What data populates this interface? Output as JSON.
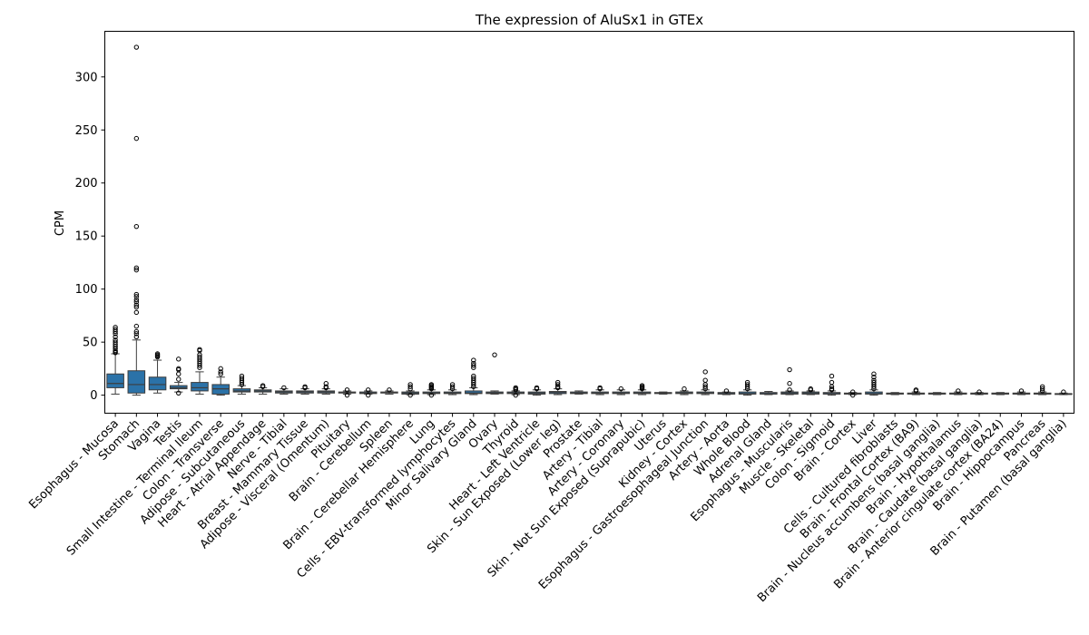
{
  "chart_data": {
    "type": "box",
    "title": "The expression of AluSx1 in GTEx",
    "xlabel": "",
    "ylabel": "CPM",
    "ylim": [
      -17,
      343
    ],
    "yticks": [
      0,
      50,
      100,
      150,
      200,
      250,
      300
    ],
    "grid": false,
    "legend": "none",
    "box_color": "#2b72a8",
    "categories": [
      "Esophagus - Mucosa",
      "Stomach",
      "Vagina",
      "Testis",
      "Small Intestine - Terminal Ileum",
      "Colon - Transverse",
      "Adipose - Subcutaneous",
      "Heart - Atrial Appendage",
      "Nerve - Tibial",
      "Breast - Mammary Tissue",
      "Adipose - Visceral (Omentum)",
      "Pituitary",
      "Brain - Cerebellum",
      "Spleen",
      "Brain - Cerebellar Hemisphere",
      "Lung",
      "Cells - EBV-transformed lymphocytes",
      "Minor Salivary Gland",
      "Ovary",
      "Thyroid",
      "Heart - Left Ventricle",
      "Skin - Sun Exposed (Lower leg)",
      "Prostate",
      "Artery - Tibial",
      "Artery - Coronary",
      "Skin - Not Sun Exposed (Suprapubic)",
      "Uterus",
      "Kidney - Cortex",
      "Esophagus - Gastroesophageal Junction",
      "Artery - Aorta",
      "Whole Blood",
      "Adrenal Gland",
      "Esophagus - Muscularis",
      "Muscle - Skeletal",
      "Colon - Sigmoid",
      "Brain - Cortex",
      "Liver",
      "Cells - Cultured fibroblasts",
      "Brain - Frontal Cortex (BA9)",
      "Brain - Nucleus accumbens (basal ganglia)",
      "Brain - Hypothalamus",
      "Brain - Caudate (basal ganglia)",
      "Brain - Anterior cingulate cortex (BA24)",
      "Brain - Hippocampus",
      "Pancreas",
      "Brain - Putamen (basal ganglia)"
    ],
    "boxes": [
      {
        "whislo": 1,
        "q1": 7,
        "med": 11,
        "q3": 20,
        "whishi": 39,
        "fliers": [
          40,
          41,
          42,
          44,
          46,
          48,
          50,
          52,
          55,
          58,
          60,
          62,
          64
        ]
      },
      {
        "whislo": 0,
        "q1": 2,
        "med": 10,
        "q3": 23,
        "whishi": 52,
        "fliers": [
          55,
          58,
          60,
          65,
          78,
          83,
          85,
          88,
          90,
          93,
          95,
          118,
          120,
          159,
          242,
          328
        ]
      },
      {
        "whislo": 2,
        "q1": 5,
        "med": 10,
        "q3": 17,
        "whishi": 33,
        "fliers": [
          36,
          37,
          38,
          39
        ]
      },
      {
        "whislo": 3,
        "q1": 6,
        "med": 7,
        "q3": 9,
        "whishi": 12,
        "fliers": [
          2,
          15,
          20,
          24,
          25,
          34
        ]
      },
      {
        "whislo": 1,
        "q1": 4,
        "med": 7,
        "q3": 12,
        "whishi": 22,
        "fliers": [
          26,
          28,
          30,
          32,
          34,
          36,
          38,
          42,
          43
        ]
      },
      {
        "whislo": 0,
        "q1": 1,
        "med": 6,
        "q3": 10,
        "whishi": 17,
        "fliers": [
          20,
          22,
          25
        ]
      },
      {
        "whislo": 1,
        "q1": 3,
        "med": 4,
        "q3": 6,
        "whishi": 9,
        "fliers": [
          10,
          12,
          14,
          16,
          18
        ]
      },
      {
        "whislo": 1,
        "q1": 3,
        "med": 4,
        "q3": 5,
        "whishi": 7,
        "fliers": [
          8,
          9
        ]
      },
      {
        "whislo": 1,
        "q1": 2,
        "med": 3,
        "q3": 4,
        "whishi": 6,
        "fliers": [
          7
        ]
      },
      {
        "whislo": 1,
        "q1": 2,
        "med": 3,
        "q3": 4,
        "whishi": 6,
        "fliers": [
          7,
          8
        ]
      },
      {
        "whislo": 1,
        "q1": 2,
        "med": 3,
        "q3": 4,
        "whishi": 6,
        "fliers": [
          7,
          8,
          11
        ]
      },
      {
        "whislo": 1,
        "q1": 2,
        "med": 2.5,
        "q3": 3,
        "whishi": 4,
        "fliers": [
          0,
          5
        ]
      },
      {
        "whislo": 1,
        "q1": 1.5,
        "med": 2,
        "q3": 3,
        "whishi": 4,
        "fliers": [
          0,
          5
        ]
      },
      {
        "whislo": 1,
        "q1": 2,
        "med": 2.5,
        "q3": 3,
        "whishi": 4,
        "fliers": [
          5
        ]
      },
      {
        "whislo": 0.5,
        "q1": 1,
        "med": 2,
        "q3": 3,
        "whishi": 4,
        "fliers": [
          0,
          6,
          8,
          10
        ]
      },
      {
        "whislo": 0.5,
        "q1": 1.5,
        "med": 2,
        "q3": 3,
        "whishi": 5,
        "fliers": [
          0,
          6,
          7,
          8,
          9,
          10
        ]
      },
      {
        "whislo": 0.5,
        "q1": 1.5,
        "med": 2,
        "q3": 3,
        "whishi": 5,
        "fliers": [
          6,
          8,
          10
        ]
      },
      {
        "whislo": 0.5,
        "q1": 1.5,
        "med": 2,
        "q3": 4,
        "whishi": 7,
        "fliers": [
          8,
          10,
          12,
          14,
          16,
          18,
          26,
          28,
          30,
          33
        ]
      },
      {
        "whislo": 1,
        "q1": 1.5,
        "med": 2,
        "q3": 3,
        "whishi": 4,
        "fliers": [
          38
        ]
      },
      {
        "whislo": 0.5,
        "q1": 1.5,
        "med": 2,
        "q3": 3,
        "whishi": 4,
        "fliers": [
          0,
          5,
          6,
          7
        ]
      },
      {
        "whislo": 0,
        "q1": 1,
        "med": 2,
        "q3": 3,
        "whishi": 5,
        "fliers": [
          6,
          7
        ]
      },
      {
        "whislo": 0.5,
        "q1": 1.5,
        "med": 2.5,
        "q3": 3.5,
        "whishi": 6,
        "fliers": [
          7,
          8,
          10,
          12
        ]
      },
      {
        "whislo": 1,
        "q1": 1.5,
        "med": 2,
        "q3": 3,
        "whishi": 4,
        "fliers": []
      },
      {
        "whislo": 0.5,
        "q1": 1.5,
        "med": 2,
        "q3": 3,
        "whishi": 5,
        "fliers": [
          6,
          7
        ]
      },
      {
        "whislo": 0.5,
        "q1": 1.5,
        "med": 2,
        "q3": 3,
        "whishi": 5,
        "fliers": [
          6
        ]
      },
      {
        "whislo": 0.5,
        "q1": 1.5,
        "med": 2,
        "q3": 3,
        "whishi": 5,
        "fliers": [
          6,
          7,
          8,
          9
        ]
      },
      {
        "whislo": 1,
        "q1": 1.5,
        "med": 2,
        "q3": 2.5,
        "whishi": 3,
        "fliers": []
      },
      {
        "whislo": 0.5,
        "q1": 1.5,
        "med": 2,
        "q3": 3,
        "whishi": 4,
        "fliers": [
          6
        ]
      },
      {
        "whislo": 0.5,
        "q1": 1.5,
        "med": 2,
        "q3": 3,
        "whishi": 5,
        "fliers": [
          6,
          8,
          10,
          14,
          22
        ]
      },
      {
        "whislo": 0.5,
        "q1": 1,
        "med": 2,
        "q3": 2.5,
        "whishi": 3,
        "fliers": [
          4
        ]
      },
      {
        "whislo": 0,
        "q1": 1,
        "med": 1.5,
        "q3": 3,
        "whishi": 5,
        "fliers": [
          6,
          8,
          10,
          12
        ]
      },
      {
        "whislo": 0.5,
        "q1": 1,
        "med": 1.5,
        "q3": 2.5,
        "whishi": 3.5,
        "fliers": []
      },
      {
        "whislo": 0.5,
        "q1": 1,
        "med": 2,
        "q3": 3,
        "whishi": 4,
        "fliers": [
          5,
          11,
          24
        ]
      },
      {
        "whislo": 0.5,
        "q1": 1,
        "med": 2,
        "q3": 3,
        "whishi": 4,
        "fliers": [
          5,
          6
        ]
      },
      {
        "whislo": 0,
        "q1": 1,
        "med": 1.5,
        "q3": 2.5,
        "whishi": 4,
        "fliers": [
          5,
          6,
          8,
          12,
          18
        ]
      },
      {
        "whislo": 0.5,
        "q1": 1,
        "med": 1.5,
        "q3": 2,
        "whishi": 2.5,
        "fliers": [
          0,
          3
        ]
      },
      {
        "whislo": 0,
        "q1": 1,
        "med": 1.5,
        "q3": 3,
        "whishi": 5,
        "fliers": [
          6,
          8,
          10,
          12,
          14,
          17,
          20
        ]
      },
      {
        "whislo": 0.5,
        "q1": 1,
        "med": 1.5,
        "q3": 2,
        "whishi": 2.5,
        "fliers": []
      },
      {
        "whislo": 0.5,
        "q1": 1,
        "med": 1.5,
        "q3": 2,
        "whishi": 3,
        "fliers": [
          4,
          5
        ]
      },
      {
        "whislo": 0.5,
        "q1": 1,
        "med": 1.5,
        "q3": 2,
        "whishi": 2.5,
        "fliers": []
      },
      {
        "whislo": 0.5,
        "q1": 1,
        "med": 1.5,
        "q3": 2,
        "whishi": 3,
        "fliers": [
          4
        ]
      },
      {
        "whislo": 0.5,
        "q1": 1,
        "med": 1.5,
        "q3": 2,
        "whishi": 2.5,
        "fliers": [
          3
        ]
      },
      {
        "whislo": 0.5,
        "q1": 1,
        "med": 1.5,
        "q3": 2,
        "whishi": 2.5,
        "fliers": []
      },
      {
        "whislo": 0.5,
        "q1": 1,
        "med": 1.5,
        "q3": 2,
        "whishi": 3,
        "fliers": [
          4
        ]
      },
      {
        "whislo": 0.5,
        "q1": 1,
        "med": 1.5,
        "q3": 2,
        "whishi": 3,
        "fliers": [
          4,
          6,
          8
        ]
      },
      {
        "whislo": 0.5,
        "q1": 0.8,
        "med": 1,
        "q3": 1.5,
        "whishi": 2,
        "fliers": [
          3
        ]
      }
    ]
  }
}
